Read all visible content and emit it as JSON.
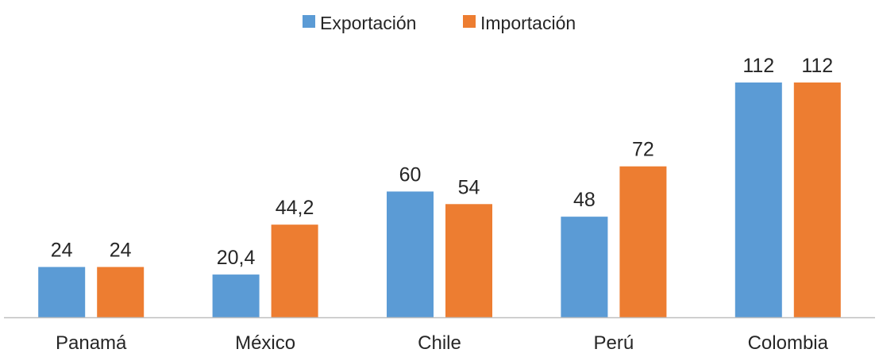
{
  "chart_data": {
    "type": "bar",
    "categories": [
      "Panamá",
      "México",
      "Chile",
      "Perú",
      "Colombia"
    ],
    "series": [
      {
        "name": "Exportación",
        "values": [
          24,
          20.4,
          60,
          48,
          112
        ],
        "labels": [
          "24",
          "20,4",
          "60",
          "48",
          "112"
        ],
        "color": "#5b9bd5"
      },
      {
        "name": "Importación",
        "values": [
          24,
          44.2,
          54,
          72,
          112
        ],
        "labels": [
          "24",
          "44,2",
          "54",
          "72",
          "112"
        ],
        "color": "#ed7d31"
      }
    ],
    "ylim": [
      0,
      112
    ],
    "legend_position": "top-center",
    "grid": false,
    "axis_color": "#bfbfbf"
  }
}
